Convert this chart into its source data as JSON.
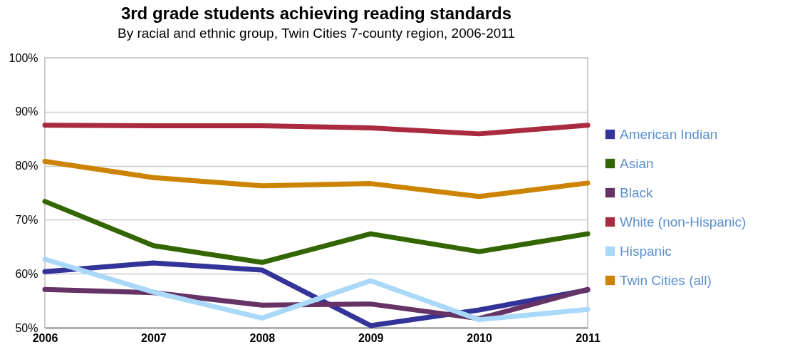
{
  "chart_data": {
    "type": "line",
    "title": "3rd grade students achieving reading standards",
    "subtitle": "By racial and ethnic group, Twin Cities 7-county region, 2006-2011",
    "categories": [
      "2006",
      "2007",
      "2008",
      "2009",
      "2010",
      "2011"
    ],
    "series": [
      {
        "name": "American Indian",
        "color": "#333399",
        "values": [
          60.4,
          62.0,
          60.7,
          50.4,
          53.3,
          57.0
        ]
      },
      {
        "name": "Asian",
        "color": "#336600",
        "values": [
          73.4,
          65.2,
          62.1,
          67.4,
          64.1,
          67.4
        ]
      },
      {
        "name": "Black",
        "color": "#663366",
        "values": [
          57.1,
          56.5,
          54.2,
          54.4,
          51.7,
          57.1
        ]
      },
      {
        "name": "White (non-Hispanic)",
        "color": "#aa2b3f",
        "values": [
          87.5,
          87.4,
          87.4,
          87.0,
          85.9,
          87.5
        ]
      },
      {
        "name": "Hispanic",
        "color": "#aad8f8",
        "values": [
          62.7,
          56.6,
          51.8,
          58.7,
          51.5,
          53.4
        ]
      },
      {
        "name": "Twin Cities (all)",
        "color": "#cc8400",
        "values": [
          80.8,
          77.8,
          76.3,
          76.7,
          74.3,
          76.8
        ]
      }
    ],
    "ylim": [
      50,
      100
    ],
    "yticks": [
      {
        "value": 50,
        "label": "50%"
      },
      {
        "value": 60,
        "label": "60%"
      },
      {
        "value": 70,
        "label": "70%"
      },
      {
        "value": 80,
        "label": "80%"
      },
      {
        "value": 90,
        "label": "90%"
      },
      {
        "value": 100,
        "label": "100%"
      }
    ],
    "grid": "y",
    "legend": "right",
    "line_style": "solid",
    "marker": "none"
  }
}
